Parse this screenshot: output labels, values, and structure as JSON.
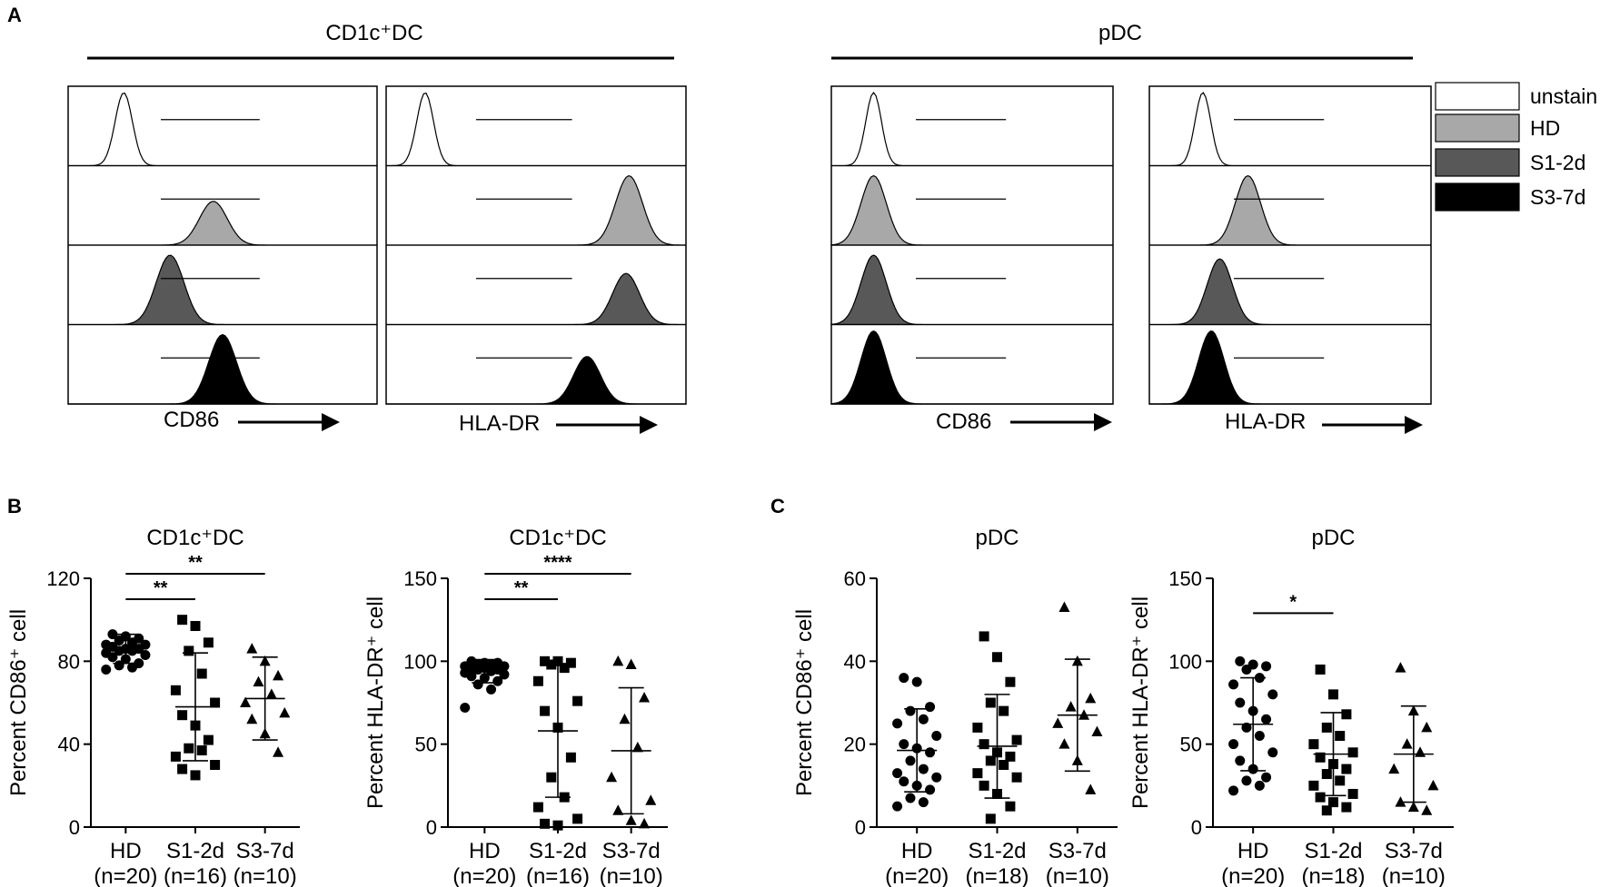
{
  "colors": {
    "unstain": "#ffffff",
    "HD": "#a8a8a8",
    "S1-2d": "#585858",
    "S3-7d": "#000000",
    "axis": "#000000"
  },
  "panelA": {
    "panel_label": "A",
    "group_headers": [
      "CD1c⁺DC",
      "pDC"
    ],
    "legend": [
      "unstain",
      "HD",
      "S1-2d",
      "S3-7d"
    ],
    "xlabels": [
      "CD86",
      "HLA-DR",
      "CD86",
      "HLA-DR"
    ]
  },
  "panelB": {
    "panel_label": "B"
  },
  "panelC": {
    "panel_label": "C"
  },
  "chart_data": [
    {
      "type": "histogram",
      "title": "CD1c⁺DC",
      "xlabel": "CD86",
      "tracks": [
        {
          "name": "unstain",
          "peak_position": 0.18,
          "relative_height": 1.0
        },
        {
          "name": "HD",
          "peak_position": 0.47,
          "relative_height": 0.6
        },
        {
          "name": "S1-2d",
          "peak_position": 0.33,
          "relative_height": 0.95
        },
        {
          "name": "S3-7d",
          "peak_position": 0.5,
          "relative_height": 0.95
        }
      ]
    },
    {
      "type": "histogram",
      "title": "CD1c⁺DC",
      "xlabel": "HLA-DR",
      "tracks": [
        {
          "name": "unstain",
          "peak_position": 0.13,
          "relative_height": 1.0
        },
        {
          "name": "HD",
          "peak_position": 0.81,
          "relative_height": 0.95
        },
        {
          "name": "S1-2d",
          "peak_position": 0.8,
          "relative_height": 0.7
        },
        {
          "name": "S3-7d",
          "peak_position": 0.67,
          "relative_height": 0.65
        }
      ]
    },
    {
      "type": "histogram",
      "title": "pDC",
      "xlabel": "CD86",
      "tracks": [
        {
          "name": "unstain",
          "peak_position": 0.15,
          "relative_height": 1.0
        },
        {
          "name": "HD",
          "peak_position": 0.15,
          "relative_height": 0.95
        },
        {
          "name": "S1-2d",
          "peak_position": 0.15,
          "relative_height": 0.95
        },
        {
          "name": "S3-7d",
          "peak_position": 0.15,
          "relative_height": 1.0
        }
      ]
    },
    {
      "type": "histogram",
      "title": "pDC",
      "xlabel": "HLA-DR",
      "tracks": [
        {
          "name": "unstain",
          "peak_position": 0.19,
          "relative_height": 1.0
        },
        {
          "name": "HD",
          "peak_position": 0.35,
          "relative_height": 0.95
        },
        {
          "name": "S1-2d",
          "peak_position": 0.25,
          "relative_height": 0.9
        },
        {
          "name": "S3-7d",
          "peak_position": 0.22,
          "relative_height": 1.0
        }
      ]
    },
    {
      "type": "scatter",
      "title": "CD1c⁺DC",
      "ylabel": "Percent CD86⁺ cell",
      "ylim": [
        0,
        120
      ],
      "yticks": [
        0,
        40,
        80,
        120
      ],
      "groups": [
        {
          "label": "HD",
          "n": "(n=20)",
          "marker": "circle",
          "mean": 86,
          "sd_low": 79,
          "sd_high": 93,
          "values": [
            93,
            92,
            91,
            90,
            89,
            88,
            88,
            87,
            86,
            86,
            85,
            85,
            84,
            83,
            82,
            81,
            79,
            78,
            77,
            76
          ]
        },
        {
          "label": "S1-2d",
          "n": "(n=16)",
          "marker": "square",
          "mean": 58,
          "sd_low": 32,
          "sd_high": 84,
          "values": [
            100,
            97,
            89,
            85,
            74,
            66,
            60,
            54,
            49,
            42,
            38,
            37,
            34,
            30,
            28,
            25
          ]
        },
        {
          "label": "S3-7d",
          "n": "(n=10)",
          "marker": "triangle",
          "mean": 62,
          "sd_low": 42,
          "sd_high": 82,
          "values": [
            86,
            80,
            73,
            70,
            64,
            60,
            55,
            52,
            45,
            36
          ]
        }
      ],
      "significance": [
        {
          "from": "HD",
          "to": "S1-2d",
          "label": "**"
        },
        {
          "from": "HD",
          "to": "S3-7d",
          "label": "**"
        }
      ]
    },
    {
      "type": "scatter",
      "title": "CD1c⁺DC",
      "ylabel": "Percent HLA-DR⁺ cell",
      "ylim": [
        0,
        150
      ],
      "yticks": [
        0,
        50,
        100,
        150
      ],
      "groups": [
        {
          "label": "HD",
          "n": "(n=20)",
          "marker": "circle",
          "mean": 94,
          "sd_low": 87,
          "sd_high": 101,
          "values": [
            100,
            99,
            99,
            98,
            98,
            97,
            97,
            96,
            96,
            95,
            95,
            94,
            93,
            92,
            91,
            90,
            88,
            86,
            83,
            72
          ]
        },
        {
          "label": "S1-2d",
          "n": "(n=16)",
          "marker": "square",
          "mean": 58,
          "sd_low": 18,
          "sd_high": 98,
          "values": [
            100,
            100,
            99,
            98,
            96,
            88,
            76,
            70,
            60,
            42,
            30,
            18,
            12,
            5,
            2,
            1
          ]
        },
        {
          "label": "S3-7d",
          "n": "(n=10)",
          "marker": "triangle",
          "mean": 46,
          "sd_low": 8,
          "sd_high": 84,
          "values": [
            100,
            98,
            78,
            65,
            48,
            30,
            16,
            10,
            4,
            2
          ]
        }
      ],
      "significance": [
        {
          "from": "HD",
          "to": "S1-2d",
          "label": "**"
        },
        {
          "from": "HD",
          "to": "S3-7d",
          "label": "****"
        }
      ]
    },
    {
      "type": "scatter",
      "title": "pDC",
      "ylabel": "Percent CD86⁺ cell",
      "ylim": [
        0,
        60
      ],
      "yticks": [
        0,
        20,
        40,
        60
      ],
      "groups": [
        {
          "label": "HD",
          "n": "(n=20)",
          "marker": "circle",
          "mean": 18.5,
          "sd_low": 8.5,
          "sd_high": 28.5,
          "values": [
            36,
            35,
            29,
            28,
            26,
            25,
            22,
            20,
            19,
            18,
            16,
            14,
            13,
            12,
            11,
            10,
            9,
            7,
            6,
            5
          ]
        },
        {
          "label": "S1-2d",
          "n": "(n=18)",
          "marker": "square",
          "mean": 19.5,
          "sd_low": 7,
          "sd_high": 32,
          "values": [
            46,
            41,
            35,
            30,
            28,
            24,
            21,
            20,
            18,
            17,
            16,
            15,
            13,
            12,
            10,
            8,
            5,
            2
          ]
        },
        {
          "label": "S3-7d",
          "n": "(n=10)",
          "marker": "triangle",
          "mean": 27,
          "sd_low": 13.5,
          "sd_high": 40.5,
          "values": [
            53,
            40,
            31,
            29,
            27,
            25,
            23,
            20,
            16,
            9
          ]
        }
      ],
      "significance": []
    },
    {
      "type": "scatter",
      "title": "pDC",
      "ylabel": "Percent HLA-DR⁺ cell",
      "ylim": [
        0,
        150
      ],
      "yticks": [
        0,
        50,
        100,
        150
      ],
      "groups": [
        {
          "label": "HD",
          "n": "(n=20)",
          "marker": "circle",
          "mean": 62,
          "sd_low": 34,
          "sd_high": 90,
          "values": [
            100,
            98,
            97,
            95,
            90,
            86,
            80,
            75,
            70,
            65,
            60,
            55,
            50,
            45,
            40,
            35,
            30,
            28,
            25,
            22
          ]
        },
        {
          "label": "S1-2d",
          "n": "(n=18)",
          "marker": "square",
          "mean": 44,
          "sd_low": 19,
          "sd_high": 69,
          "values": [
            95,
            80,
            68,
            60,
            55,
            50,
            45,
            42,
            38,
            35,
            32,
            28,
            25,
            20,
            18,
            15,
            12,
            10
          ]
        },
        {
          "label": "S3-7d",
          "n": "(n=10)",
          "marker": "triangle",
          "mean": 44,
          "sd_low": 15,
          "sd_high": 73,
          "values": [
            96,
            70,
            60,
            50,
            45,
            35,
            25,
            15,
            12,
            10
          ]
        }
      ],
      "significance": [
        {
          "from": "HD",
          "to": "S1-2d",
          "label": "*"
        }
      ]
    }
  ]
}
